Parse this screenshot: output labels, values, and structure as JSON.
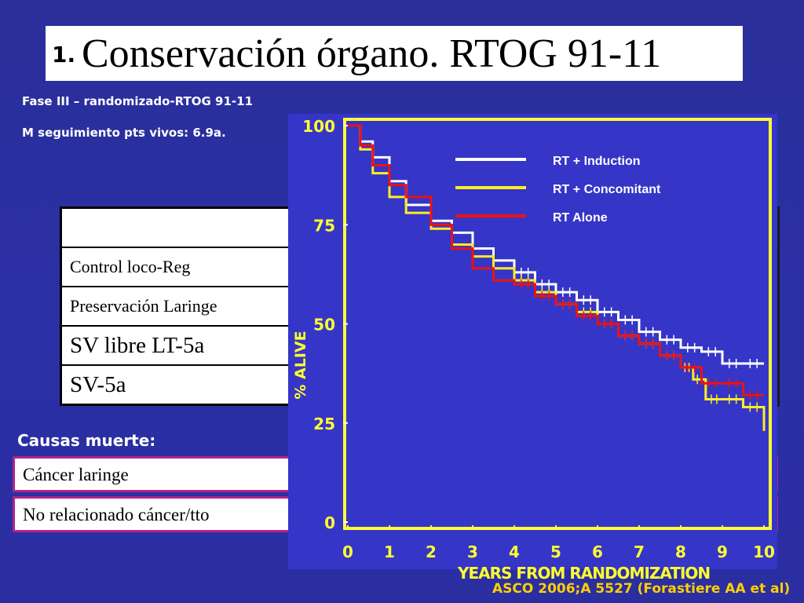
{
  "slide": {
    "title_number": "1.",
    "title": "Conservación órgano. RTOG 91-11",
    "subtitle1": "Fase III – randomizado-RTOG 91-11",
    "subtitle2": "M seguimiento pts vivos: 6.9a.",
    "table_rows": [
      "",
      "Control loco-Reg",
      "Preservación Laringe",
      "SV libre LT-5a",
      "SV-5a"
    ],
    "causes_heading": "Causas muerte:",
    "causes": [
      "Cáncer laringe",
      "No relacionado cáncer/tto"
    ],
    "source": "ASCO 2006;A 5527 (Forastiere AA et al)"
  },
  "colors": {
    "background": "#2a2f9a",
    "chart_bg": "#3535c8",
    "frame": "#ffff33",
    "white_series": "#ffffff",
    "yellow_series": "#ffee22",
    "red_series": "#ee1111",
    "cause_border": "#b0238e",
    "source_text": "#ffd000"
  },
  "chart_data": {
    "type": "line",
    "title": "",
    "xlabel": "YEARS FROM RANDOMIZATION",
    "ylabel": "% ALIVE",
    "xlim": [
      0,
      10
    ],
    "ylim": [
      0,
      100
    ],
    "x_ticks": [
      "0",
      "1",
      "2",
      "3",
      "4",
      "5",
      "6",
      "7",
      "8",
      "9",
      "10"
    ],
    "y_ticks": [
      "0",
      "25",
      "50",
      "75",
      "100"
    ],
    "legend_position": "top-right",
    "series": [
      {
        "name": "RT + Induction",
        "color": "#ffffff",
        "x": [
          0,
          0.3,
          0.6,
          1.0,
          1.4,
          2.0,
          2.5,
          3.0,
          3.5,
          4.0,
          4.5,
          5.0,
          5.5,
          6.0,
          6.5,
          7.0,
          7.5,
          8.0,
          8.5,
          9.0,
          9.5,
          10.0
        ],
        "values": [
          100,
          96,
          92,
          86,
          80,
          76,
          73,
          69,
          66,
          63,
          60,
          58,
          56,
          53,
          51,
          48,
          46,
          44,
          43,
          40,
          40,
          40
        ]
      },
      {
        "name": "RT + Concomitant",
        "color": "#ffee22",
        "x": [
          0,
          0.3,
          0.6,
          1.0,
          1.4,
          2.0,
          2.5,
          3.0,
          3.5,
          4.0,
          4.5,
          5.0,
          5.5,
          6.0,
          6.5,
          7.0,
          7.5,
          8.0,
          8.3,
          8.6,
          9.0,
          9.5,
          10.0
        ],
        "values": [
          100,
          94,
          88,
          82,
          78,
          74,
          70,
          67,
          64,
          61,
          58,
          55,
          53,
          50,
          47,
          45,
          42,
          39,
          36,
          31,
          31,
          29,
          23
        ]
      },
      {
        "name": "RT Alone",
        "color": "#ee1111",
        "x": [
          0,
          0.3,
          0.6,
          1.0,
          1.4,
          2.0,
          2.5,
          3.0,
          3.5,
          4.0,
          4.5,
          5.0,
          5.5,
          6.0,
          6.5,
          7.0,
          7.5,
          8.0,
          8.5,
          9.0,
          9.5,
          10.0
        ],
        "values": [
          100,
          95,
          90,
          85,
          82,
          75,
          69,
          64,
          61,
          60,
          57,
          55,
          52,
          50,
          47,
          45,
          42,
          39,
          35,
          35,
          32,
          32
        ]
      }
    ]
  }
}
